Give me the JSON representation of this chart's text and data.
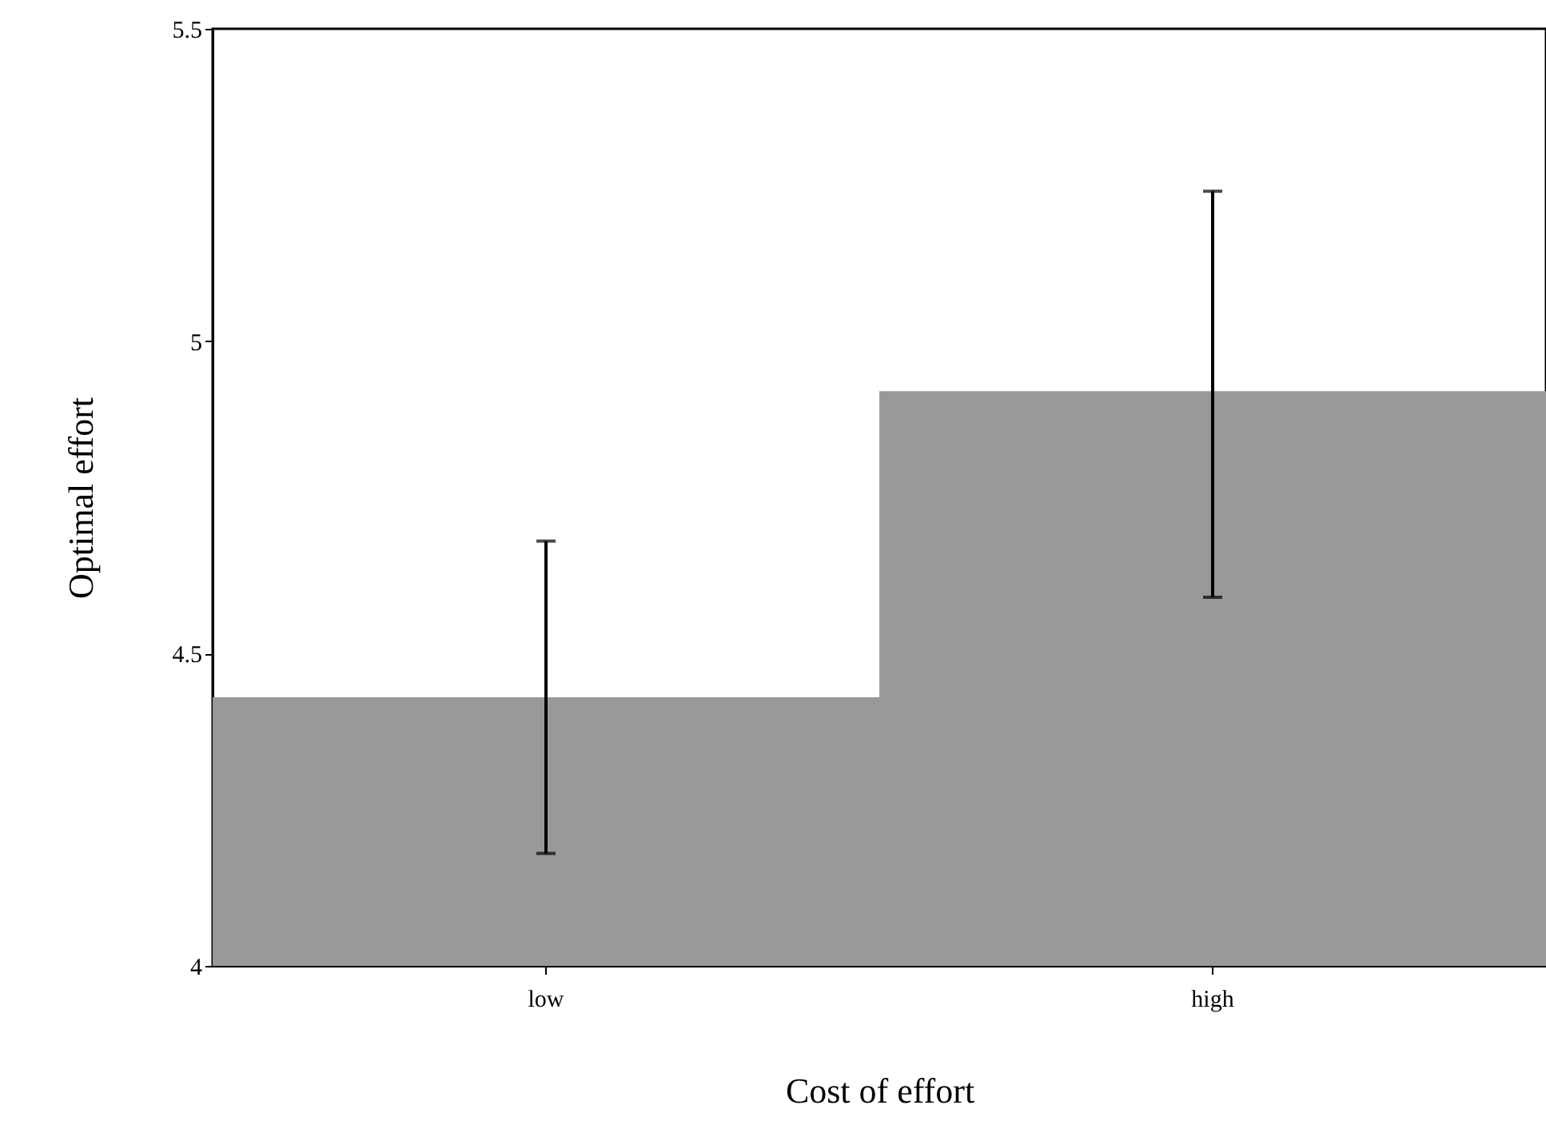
{
  "chart_data": {
    "type": "bar",
    "xlabel": "Cost of effort",
    "ylabel": "Optimal effort",
    "categories": [
      "low",
      "high"
    ],
    "values": [
      4.43,
      4.92
    ],
    "errors": [
      [
        4.18,
        4.68
      ],
      [
        4.59,
        5.24
      ]
    ],
    "color": "#999999",
    "ylim": [
      4,
      5.5
    ],
    "yticks": [
      4,
      4.5,
      5,
      5.5
    ],
    "grid": false
  }
}
